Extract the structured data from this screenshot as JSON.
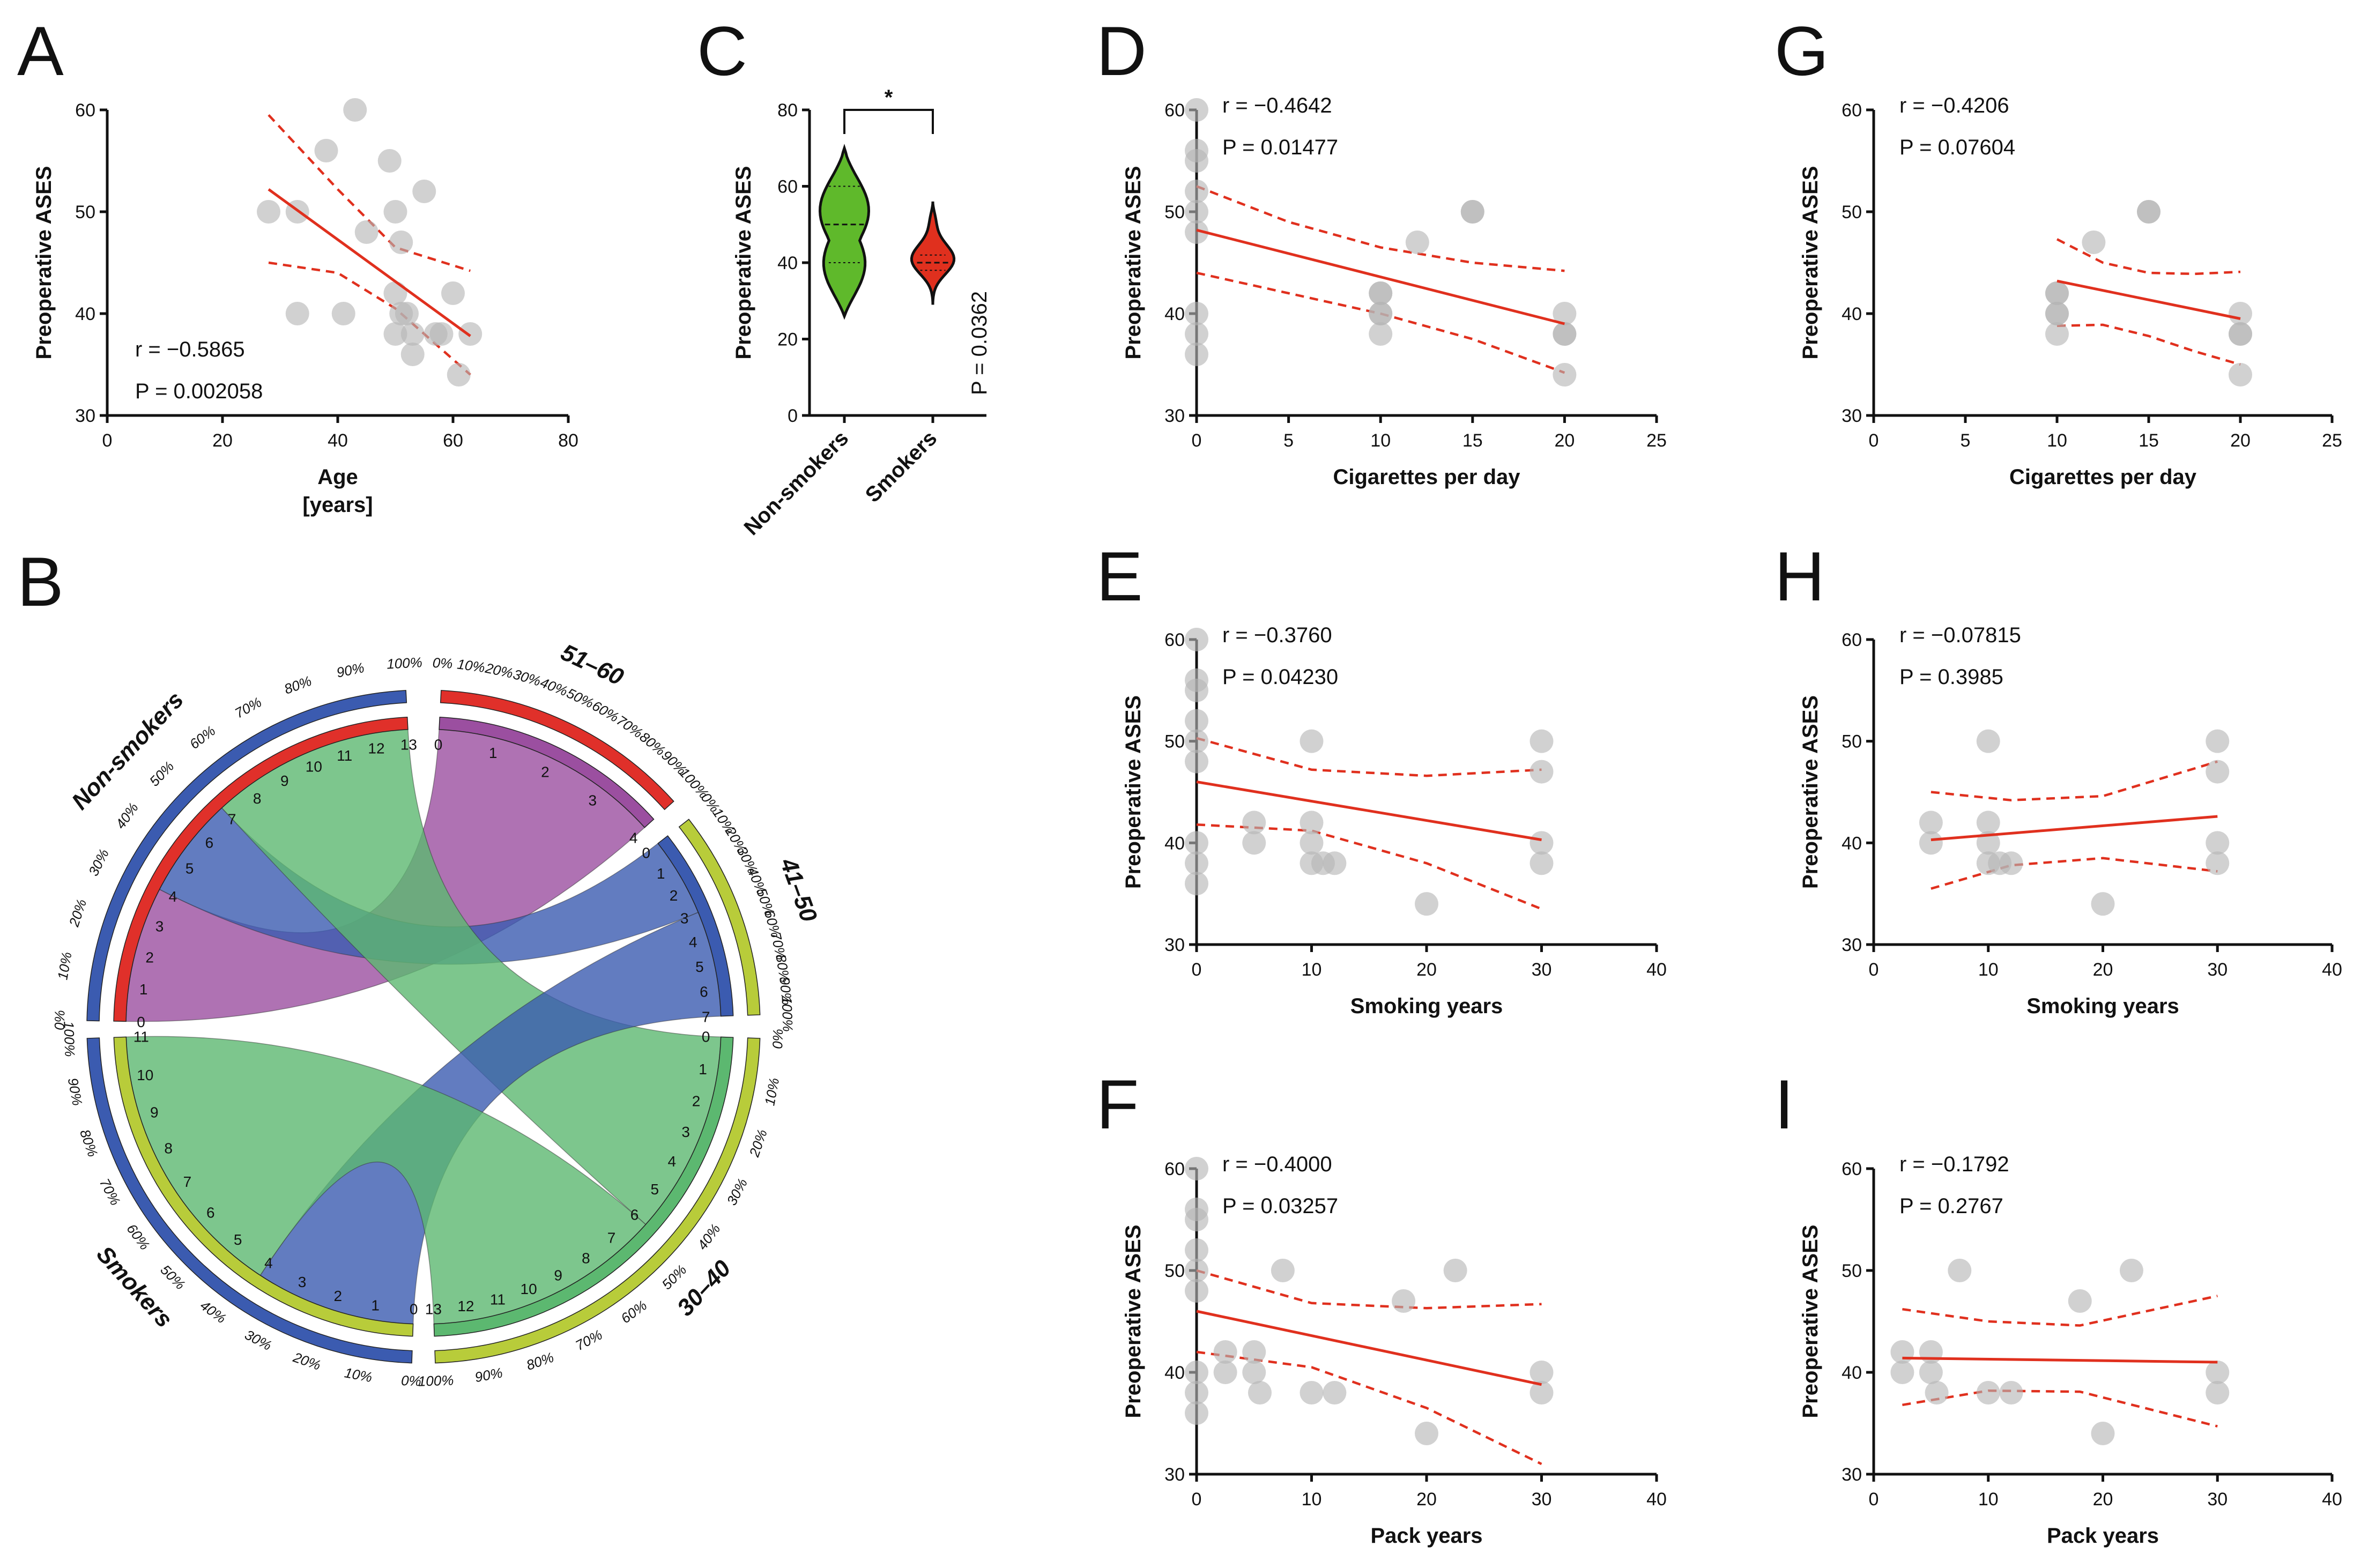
{
  "figure": {
    "panel_letters": [
      "A",
      "B",
      "C",
      "D",
      "E",
      "F",
      "G",
      "H",
      "I"
    ]
  },
  "colors": {
    "fit_line": "#e0301e",
    "point": "#b4b4b4",
    "point_dark": "#6e6e6e",
    "violin_non_smokers": "#5fb92b",
    "violin_smokers": "#e0301e",
    "axis": "#111111"
  },
  "chart_data": [
    {
      "panel": "A",
      "type": "scatter",
      "xlabel": "Age",
      "xlabel2": "[years]",
      "ylabel": "Preoperative ASES",
      "xlim": [
        0,
        80
      ],
      "ylim": [
        30,
        60
      ],
      "xticks": [
        0,
        20,
        40,
        60,
        80
      ],
      "yticks": [
        30,
        40,
        50,
        60
      ],
      "r_text": "r = −0.5865",
      "p_text": "P = 0.002058",
      "points": [
        [
          28,
          50
        ],
        [
          33,
          50
        ],
        [
          33,
          40
        ],
        [
          38,
          56
        ],
        [
          41,
          40
        ],
        [
          43,
          60
        ],
        [
          45,
          48
        ],
        [
          49,
          55
        ],
        [
          50,
          50
        ],
        [
          51,
          47
        ],
        [
          50,
          42
        ],
        [
          51,
          40
        ],
        [
          50,
          38
        ],
        [
          52,
          40
        ],
        [
          53,
          38
        ],
        [
          53,
          36
        ],
        [
          55,
          52
        ],
        [
          57,
          38
        ],
        [
          58,
          38
        ],
        [
          60,
          42
        ],
        [
          61,
          34
        ],
        [
          63,
          38
        ]
      ],
      "fit": [
        [
          28,
          52.2
        ],
        [
          63,
          37.8
        ]
      ],
      "ci_upper": [
        [
          28,
          59.5
        ],
        [
          40,
          52.2
        ],
        [
          50,
          46.5
        ],
        [
          63,
          44.2
        ]
      ],
      "ci_lower": [
        [
          28,
          45
        ],
        [
          40,
          44
        ],
        [
          50,
          40.5
        ],
        [
          63,
          34
        ]
      ]
    },
    {
      "panel": "C",
      "type": "violin",
      "categories": [
        "Non-smokers",
        "Smokers"
      ],
      "ylabel": "Preoperative ASES",
      "ylim": [
        0,
        80
      ],
      "yticks": [
        0,
        20,
        40,
        60,
        80
      ],
      "significance": "*",
      "p_text": "P = 0.0362",
      "series": [
        {
          "name": "Non-smokers",
          "min": 26,
          "max": 70,
          "median": 50,
          "q1": 40,
          "q3": 60
        },
        {
          "name": "Smokers",
          "min": 29,
          "max": 56,
          "median": 40,
          "q1": 38,
          "q3": 42
        }
      ]
    },
    {
      "panel": "D",
      "type": "scatter",
      "xlabel": "Cigarettes per day",
      "ylabel": "Preoperative ASES",
      "xlim": [
        0,
        25
      ],
      "ylim": [
        30,
        60
      ],
      "xticks": [
        0,
        5,
        10,
        15,
        20,
        25
      ],
      "yticks": [
        30,
        40,
        50,
        60
      ],
      "r_text": "r = −0.4642",
      "p_text": "P = 0.01477",
      "points": [
        [
          0,
          60
        ],
        [
          0,
          56
        ],
        [
          0,
          55
        ],
        [
          0,
          52
        ],
        [
          0,
          50
        ],
        [
          0,
          48
        ],
        [
          0,
          40
        ],
        [
          0,
          38
        ],
        [
          0,
          36
        ],
        [
          10,
          42
        ],
        [
          10,
          42
        ],
        [
          10,
          40
        ],
        [
          10,
          40
        ],
        [
          10,
          38
        ],
        [
          12,
          47
        ],
        [
          15,
          50
        ],
        [
          15,
          50
        ],
        [
          20,
          40
        ],
        [
          20,
          38
        ],
        [
          20,
          38
        ],
        [
          20,
          34
        ]
      ],
      "fit": [
        [
          0,
          48.2
        ],
        [
          20,
          39
        ]
      ],
      "ci_upper": [
        [
          0,
          52.5
        ],
        [
          5,
          49
        ],
        [
          10,
          46.5
        ],
        [
          15,
          45
        ],
        [
          20,
          44.2
        ]
      ],
      "ci_lower": [
        [
          0,
          44
        ],
        [
          5,
          42
        ],
        [
          10,
          40
        ],
        [
          15,
          37.5
        ],
        [
          20,
          34.2
        ]
      ]
    },
    {
      "panel": "E",
      "type": "scatter",
      "xlabel": "Smoking years",
      "ylabel": "Preoperative ASES",
      "xlim": [
        0,
        40
      ],
      "ylim": [
        30,
        60
      ],
      "xticks": [
        0,
        10,
        20,
        30,
        40
      ],
      "yticks": [
        30,
        40,
        50,
        60
      ],
      "r_text": "r = −0.3760",
      "p_text": "P = 0.04230",
      "points": [
        [
          0,
          60
        ],
        [
          0,
          56
        ],
        [
          0,
          55
        ],
        [
          0,
          52
        ],
        [
          0,
          50
        ],
        [
          0,
          48
        ],
        [
          0,
          40
        ],
        [
          0,
          38
        ],
        [
          0,
          36
        ],
        [
          5,
          42
        ],
        [
          5,
          40
        ],
        [
          10,
          50
        ],
        [
          10,
          42
        ],
        [
          10,
          40
        ],
        [
          10,
          38
        ],
        [
          11,
          38
        ],
        [
          12,
          38
        ],
        [
          20,
          34
        ],
        [
          30,
          50
        ],
        [
          30,
          47
        ],
        [
          30,
          40
        ],
        [
          30,
          38
        ]
      ],
      "fit": [
        [
          0,
          46
        ],
        [
          30,
          40.3
        ]
      ],
      "ci_upper": [
        [
          0,
          50.3
        ],
        [
          10,
          47.2
        ],
        [
          20,
          46.6
        ],
        [
          30,
          47.2
        ]
      ],
      "ci_lower": [
        [
          0,
          41.8
        ],
        [
          10,
          41.2
        ],
        [
          20,
          38
        ],
        [
          30,
          33.5
        ]
      ]
    },
    {
      "panel": "F",
      "type": "scatter",
      "xlabel": "Pack years",
      "ylabel": "Preoperative ASES",
      "xlim": [
        0,
        40
      ],
      "ylim": [
        30,
        60
      ],
      "xticks": [
        0,
        10,
        20,
        30,
        40
      ],
      "yticks": [
        30,
        40,
        50,
        60
      ],
      "r_text": "r = −0.4000",
      "p_text": "P = 0.03257",
      "points": [
        [
          0,
          60
        ],
        [
          0,
          56
        ],
        [
          0,
          55
        ],
        [
          0,
          52
        ],
        [
          0,
          50
        ],
        [
          0,
          48
        ],
        [
          0,
          40
        ],
        [
          0,
          38
        ],
        [
          0,
          36
        ],
        [
          2.5,
          42
        ],
        [
          2.5,
          40
        ],
        [
          5,
          42
        ],
        [
          5,
          40
        ],
        [
          5.5,
          38
        ],
        [
          7.5,
          50
        ],
        [
          10,
          38
        ],
        [
          12,
          38
        ],
        [
          18,
          47
        ],
        [
          20,
          34
        ],
        [
          22.5,
          50
        ],
        [
          30,
          40
        ],
        [
          30,
          38
        ]
      ],
      "fit": [
        [
          0,
          46
        ],
        [
          30,
          38.8
        ]
      ],
      "ci_upper": [
        [
          0,
          50
        ],
        [
          10,
          46.8
        ],
        [
          20,
          46.3
        ],
        [
          30,
          46.7
        ]
      ],
      "ci_lower": [
        [
          0,
          42
        ],
        [
          10,
          40.5
        ],
        [
          20,
          36.5
        ],
        [
          30,
          31
        ]
      ]
    },
    {
      "panel": "G",
      "type": "scatter",
      "xlabel": "Cigarettes per day",
      "ylabel": "Preoperative ASES",
      "xlim": [
        0,
        25
      ],
      "ylim": [
        30,
        60
      ],
      "xticks": [
        0,
        5,
        10,
        15,
        20,
        25
      ],
      "yticks": [
        30,
        40,
        50,
        60
      ],
      "r_text": "r = −0.4206",
      "p_text": "P = 0.07604",
      "points": [
        [
          10,
          42
        ],
        [
          10,
          42
        ],
        [
          10,
          40
        ],
        [
          10,
          40
        ],
        [
          10,
          38
        ],
        [
          12,
          47
        ],
        [
          15,
          50
        ],
        [
          15,
          50
        ],
        [
          20,
          40
        ],
        [
          20,
          38
        ],
        [
          20,
          38
        ],
        [
          20,
          34
        ]
      ],
      "fit": [
        [
          10,
          43.2
        ],
        [
          20,
          39.5
        ]
      ],
      "ci_upper": [
        [
          10,
          47.3
        ],
        [
          12.5,
          45
        ],
        [
          15,
          44
        ],
        [
          17.5,
          43.9
        ],
        [
          20,
          44.1
        ]
      ],
      "ci_lower": [
        [
          10,
          38.8
        ],
        [
          12.5,
          38.9
        ],
        [
          15,
          37.8
        ],
        [
          17.5,
          36.3
        ],
        [
          20,
          35
        ]
      ]
    },
    {
      "panel": "H",
      "type": "scatter",
      "xlabel": "Smoking years",
      "ylabel": "Preoperative ASES",
      "xlim": [
        0,
        40
      ],
      "ylim": [
        30,
        60
      ],
      "xticks": [
        0,
        10,
        20,
        30,
        40
      ],
      "yticks": [
        30,
        40,
        50,
        60
      ],
      "r_text": "r = −0.07815",
      "p_text": "P = 0.3985",
      "points": [
        [
          5,
          42
        ],
        [
          5,
          40
        ],
        [
          10,
          50
        ],
        [
          10,
          42
        ],
        [
          10,
          40
        ],
        [
          10,
          38
        ],
        [
          11,
          38
        ],
        [
          12,
          38
        ],
        [
          20,
          34
        ],
        [
          30,
          50
        ],
        [
          30,
          47
        ],
        [
          30,
          40
        ],
        [
          30,
          38
        ]
      ],
      "fit": [
        [
          5,
          40.3
        ],
        [
          30,
          42.6
        ]
      ],
      "ci_upper": [
        [
          5,
          45
        ],
        [
          12,
          44.2
        ],
        [
          20,
          44.6
        ],
        [
          30,
          48
        ]
      ],
      "ci_lower": [
        [
          5,
          35.5
        ],
        [
          12,
          37.8
        ],
        [
          20,
          38.5
        ],
        [
          30,
          37.2
        ]
      ]
    },
    {
      "panel": "I",
      "type": "scatter",
      "xlabel": "Pack years",
      "ylabel": "Preoperative ASES",
      "xlim": [
        0,
        40
      ],
      "ylim": [
        30,
        60
      ],
      "xticks": [
        0,
        10,
        20,
        30,
        40
      ],
      "yticks": [
        30,
        40,
        50,
        60
      ],
      "r_text": "r = −0.1792",
      "p_text": "P = 0.2767",
      "points": [
        [
          2.5,
          42
        ],
        [
          2.5,
          40
        ],
        [
          5,
          42
        ],
        [
          5,
          40
        ],
        [
          5.5,
          38
        ],
        [
          7.5,
          50
        ],
        [
          10,
          38
        ],
        [
          12,
          38
        ],
        [
          18,
          47
        ],
        [
          20,
          34
        ],
        [
          22.5,
          50
        ],
        [
          30,
          40
        ],
        [
          30,
          38
        ]
      ],
      "fit": [
        [
          2.5,
          41.4
        ],
        [
          30,
          41
        ]
      ],
      "ci_upper": [
        [
          2.5,
          46.2
        ],
        [
          10,
          45
        ],
        [
          18,
          44.6
        ],
        [
          30,
          47.5
        ]
      ],
      "ci_lower": [
        [
          2.5,
          36.8
        ],
        [
          10,
          38.2
        ],
        [
          18,
          38.1
        ],
        [
          30,
          34.7
        ]
      ]
    },
    {
      "panel": "B",
      "type": "chord",
      "groups": [
        {
          "name": "Non-smokers",
          "total": 13,
          "color": "#e0302a",
          "outer_color": "#3b5bb0"
        },
        {
          "name": "51–60",
          "total": 4,
          "color": "#9b4fa0",
          "outer_color": "#e0302a"
        },
        {
          "name": "41–50",
          "total": 7,
          "color": "#3b5bb0",
          "outer_color": "#b8cc3a"
        },
        {
          "name": "Smokers",
          "total": 11,
          "color": "#b8cc3a",
          "outer_color": "#3b5bb0"
        },
        {
          "name": "30–40",
          "total": 13,
          "color": "#5cb870",
          "outer_color": "#b8cc3a"
        }
      ],
      "outer_group_labels": [
        "Non-smokers",
        "51–60",
        "41–50",
        "Smokers",
        "30–40"
      ],
      "percent_labels": [
        "0%",
        "10%",
        "20%",
        "30%",
        "40%",
        "50%",
        "60%",
        "70%",
        "80%",
        "90%",
        "100%"
      ],
      "flows": [
        {
          "from": "Non-smokers",
          "to": "51–60",
          "value": 4,
          "color": "#9b4fa0"
        },
        {
          "from": "Non-smokers",
          "to": "41–50",
          "value": 3,
          "color": "#3b5bb0"
        },
        {
          "from": "Non-smokers",
          "to": "30–40",
          "value": 6,
          "color": "#5cb870"
        },
        {
          "from": "Smokers",
          "to": "41–50",
          "value": 4,
          "color": "#3b5bb0"
        },
        {
          "from": "Smokers",
          "to": "30–40",
          "value": 7,
          "color": "#5cb870"
        }
      ]
    }
  ]
}
